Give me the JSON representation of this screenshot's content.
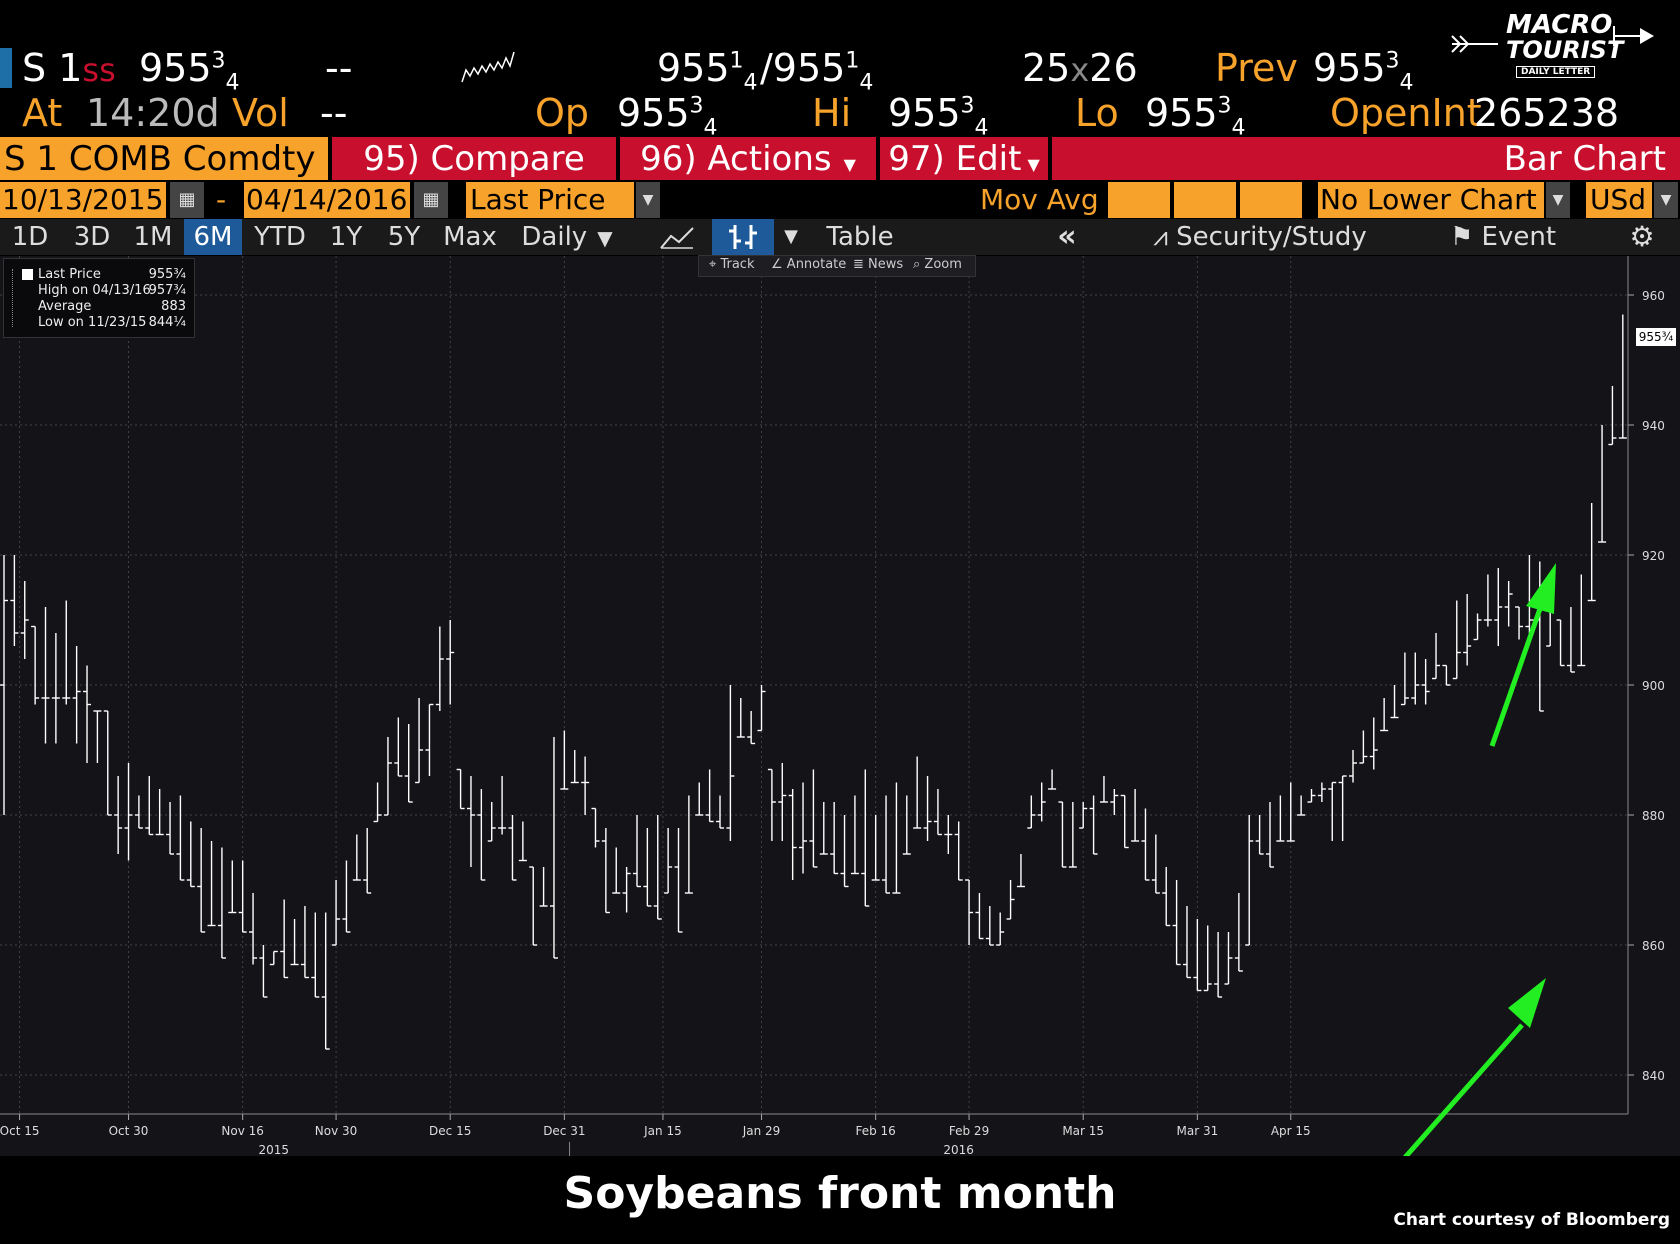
{
  "header": {
    "ticker": "S 1",
    "ticker_suffix": "ss",
    "last_main": "955",
    "last_sup": "3",
    "last_sub": "4",
    "change": "--",
    "bid_main": "955",
    "bid_sup": "1",
    "bid_sub": "4",
    "ask_main": "/955",
    "ask_sup": "1",
    "ask_sub": "4",
    "size_a": "25",
    "size_x": "x",
    "size_b": "26",
    "prev_label": "Prev",
    "prev_main": "955",
    "prev_sup": "3",
    "prev_sub": "4",
    "at_label": "At",
    "time": "14:20d",
    "vol_label": "Vol",
    "vol_value": "--",
    "op_label": "Op",
    "op_main": "955",
    "op_sup": "3",
    "op_sub": "4",
    "hi_label": "Hi",
    "hi_main": "955",
    "hi_sup": "3",
    "hi_sub": "4",
    "lo_label": "Lo",
    "lo_main": "955",
    "lo_sup": "3",
    "lo_sub": "4",
    "openint_label": "OpenInt",
    "openint_value": "265238"
  },
  "logo": {
    "line1": "MACRO",
    "line2": "TOURIST",
    "line3": "DAILY LETTER"
  },
  "menu": {
    "security": "S 1 COMB Comdty",
    "compare": "95) Compare",
    "actions": "96) Actions",
    "edit": "97) Edit",
    "title": "Bar Chart"
  },
  "controls": {
    "start_date": "10/13/2015",
    "dash": "-",
    "end_date": "04/14/2016",
    "field": "Last Price",
    "mov_avg": "Mov Avg",
    "lower_chart": "No Lower Chart",
    "currency": "USd"
  },
  "periods": [
    "1D",
    "3D",
    "1M",
    "6M",
    "YTD",
    "1Y",
    "5Y",
    "Max"
  ],
  "active_period": "6M",
  "frequency": "Daily",
  "table_label": "Table",
  "security_study": "Security/Study",
  "event_label": "Event",
  "chart_tools": {
    "track": "Track",
    "annotate": "Annotate",
    "news": "News",
    "zoom": "Zoom"
  },
  "legend": {
    "last_price_label": "Last Price",
    "last_price_value": "955¾",
    "high_label": "High on 04/13/16",
    "high_value": "957¾",
    "avg_label": "Average",
    "avg_value": "883",
    "low_label": "Low on 11/23/15",
    "low_value": "844¼"
  },
  "price_tag": "955¾",
  "caption": "Soybeans front month",
  "credit": "Chart courtesy of Bloomberg",
  "colors": {
    "orange": "#f7a22b",
    "red": "#c8102e",
    "arrow": "#22ee22",
    "background": "#131318",
    "bar": "#ffffff"
  },
  "chart_data": {
    "type": "bar",
    "subtype": "ohlc",
    "ylim": [
      834,
      966
    ],
    "y_ticks": [
      840,
      860,
      880,
      900,
      920,
      940,
      960
    ],
    "x_tick_labels": [
      "Oct 15",
      "Oct 30",
      "Nov 16",
      "Nov 30",
      "Dec 15",
      "Dec 31",
      "Jan 15",
      "Jan 29",
      "Feb 16",
      "Feb 29",
      "Mar 15",
      "Mar 31",
      "Apr 15"
    ],
    "x_tick_positions": [
      1.5,
      12,
      23,
      32,
      43,
      54,
      63.5,
      73,
      84,
      93,
      104,
      115,
      124
    ],
    "year_labels": [
      {
        "label": "2015",
        "x": 26
      },
      {
        "label": "2016",
        "x": 92
      }
    ],
    "year_separator_x": 54.5,
    "bars": [
      [
        0,
        920,
        880,
        913
      ],
      [
        1,
        920,
        906,
        908
      ],
      [
        2,
        916,
        904,
        910
      ],
      [
        3,
        909,
        897,
        898
      ],
      [
        4,
        912,
        891,
        898
      ],
      [
        5,
        908,
        891,
        898
      ],
      [
        6,
        913,
        897,
        898
      ],
      [
        7,
        906,
        891,
        899
      ],
      [
        8,
        903,
        888,
        897
      ],
      [
        9,
        892,
        888,
        896
      ],
      [
        10,
        896,
        885,
        880
      ],
      [
        11,
        886,
        874,
        878
      ],
      [
        12,
        888,
        873,
        880
      ],
      [
        13,
        883,
        878,
        878
      ],
      [
        14,
        886,
        877,
        877
      ],
      [
        15,
        884,
        881,
        877
      ],
      [
        16,
        882,
        881,
        874
      ],
      [
        17,
        883,
        874,
        870
      ],
      [
        18,
        879,
        871,
        869
      ],
      [
        19,
        878,
        870,
        862
      ],
      [
        20,
        876,
        872,
        863
      ],
      [
        21,
        875,
        863,
        858
      ],
      [
        22,
        873,
        868,
        865
      ],
      [
        23,
        873,
        868,
        862
      ],
      [
        24,
        868,
        857,
        858
      ],
      [
        25,
        860,
        857,
        852
      ],
      [
        26,
        858,
        857,
        859
      ],
      [
        27,
        867,
        861,
        855
      ],
      [
        28,
        864,
        862,
        857
      ],
      [
        29,
        866,
        858,
        855
      ],
      [
        30,
        865,
        860,
        852
      ],
      [
        31,
        865,
        859,
        844
      ],
      [
        32,
        870,
        860,
        864
      ],
      [
        33,
        873,
        862,
        862
      ],
      [
        34,
        877,
        876,
        870
      ],
      [
        35,
        878,
        872,
        868
      ],
      [
        36,
        885,
        879,
        880
      ],
      [
        37,
        892,
        880,
        888
      ],
      [
        38,
        895,
        889,
        886
      ],
      [
        39,
        894,
        890,
        882
      ],
      [
        40,
        898,
        885,
        890
      ],
      [
        41,
        890,
        886,
        897
      ],
      [
        42,
        909,
        896,
        904
      ],
      [
        43,
        910,
        897,
        905
      ],
      [
        44,
        887,
        882,
        881
      ],
      [
        45,
        886,
        872,
        880
      ],
      [
        46,
        884,
        879,
        870
      ],
      [
        47,
        882,
        876,
        878
      ],
      [
        48,
        886,
        877,
        878
      ],
      [
        49,
        880,
        871,
        870
      ],
      [
        50,
        879,
        876,
        873
      ],
      [
        51,
        872,
        867,
        860
      ],
      [
        52,
        872,
        866,
        866
      ],
      [
        53,
        892,
        870,
        858
      ],
      [
        54,
        893,
        889,
        884
      ],
      [
        55,
        890,
        887,
        885
      ],
      [
        56,
        889,
        880,
        885
      ],
      [
        57,
        881,
        875,
        876
      ],
      [
        58,
        878,
        870,
        865
      ],
      [
        59,
        875,
        869,
        868
      ],
      [
        60,
        872,
        865,
        871
      ],
      [
        61,
        880,
        875,
        869
      ],
      [
        62,
        878,
        868,
        866
      ],
      [
        63,
        880,
        870,
        864
      ],
      [
        64,
        878,
        868,
        872
      ],
      [
        65,
        878,
        874,
        862
      ],
      [
        66,
        883,
        876,
        868
      ],
      [
        67,
        885,
        882,
        880
      ],
      [
        68,
        887,
        883,
        879
      ],
      [
        69,
        883,
        879,
        878
      ],
      [
        70,
        900,
        876,
        886
      ],
      [
        71,
        898,
        896,
        892
      ],
      [
        72,
        896,
        893,
        891
      ],
      [
        73,
        900,
        893,
        899
      ],
      [
        74,
        887,
        876,
        882
      ],
      [
        75,
        888,
        876,
        883
      ],
      [
        76,
        884,
        870,
        875
      ],
      [
        77,
        885,
        871,
        876
      ],
      [
        78,
        887,
        873,
        872
      ],
      [
        79,
        882,
        875,
        874
      ],
      [
        80,
        882,
        877,
        871
      ],
      [
        81,
        880,
        877,
        869
      ],
      [
        82,
        883,
        878,
        871
      ],
      [
        83,
        887,
        876,
        866
      ],
      [
        84,
        880,
        878,
        870
      ],
      [
        85,
        883,
        876,
        868
      ],
      [
        86,
        885,
        876,
        868
      ],
      [
        87,
        883,
        878,
        874
      ],
      [
        88,
        889,
        883,
        878
      ],
      [
        89,
        886,
        876,
        879
      ],
      [
        90,
        884,
        881,
        877
      ],
      [
        91,
        880,
        874,
        877
      ],
      [
        92,
        879,
        876,
        870
      ],
      [
        93,
        870,
        860,
        865
      ],
      [
        94,
        868,
        862,
        861
      ],
      [
        95,
        866,
        860,
        860
      ],
      [
        96,
        865,
        860,
        862
      ],
      [
        97,
        870,
        864,
        867
      ],
      [
        98,
        874,
        869,
        869
      ],
      [
        99,
        883,
        878,
        880
      ],
      [
        100,
        885,
        879,
        882
      ],
      [
        101,
        887,
        885,
        884
      ],
      [
        102,
        880,
        882,
        872
      ],
      [
        103,
        882,
        878,
        872
      ],
      [
        104,
        882,
        878,
        881
      ],
      [
        105,
        883,
        880,
        874
      ],
      [
        106,
        886,
        883,
        882
      ],
      [
        107,
        884,
        880,
        883
      ],
      [
        108,
        883,
        880,
        875
      ],
      [
        109,
        884,
        880,
        876
      ],
      [
        110,
        881,
        877,
        870
      ],
      [
        111,
        877,
        868,
        868
      ],
      [
        112,
        872,
        865,
        863
      ],
      [
        113,
        870,
        864,
        857
      ],
      [
        114,
        866,
        858,
        855
      ],
      [
        115,
        864,
        856,
        853
      ],
      [
        116,
        863,
        853,
        854
      ],
      [
        117,
        862,
        860,
        852
      ],
      [
        118,
        862,
        854,
        858
      ],
      [
        119,
        868,
        861,
        856
      ]
    ],
    "bars_late": [
      [
        120,
        880,
        860,
        876
      ],
      [
        121,
        880,
        877,
        874
      ],
      [
        122,
        882,
        878,
        872
      ],
      [
        123,
        883,
        879,
        876
      ],
      [
        124,
        885,
        882,
        876
      ],
      [
        125,
        883,
        880,
        880
      ],
      [
        126,
        884,
        882,
        883
      ],
      [
        127,
        885,
        882,
        884
      ],
      [
        128,
        880,
        876,
        885
      ],
      [
        129,
        880,
        876,
        886
      ],
      [
        130,
        890,
        885,
        888
      ],
      [
        131,
        893,
        888,
        889
      ],
      [
        132,
        895,
        887,
        890
      ],
      [
        133,
        898,
        893,
        893
      ],
      [
        134,
        900,
        895,
        895
      ],
      [
        135,
        905,
        897,
        898
      ],
      [
        136,
        905,
        897,
        900
      ],
      [
        137,
        904,
        897,
        899
      ],
      [
        138,
        908,
        901,
        903
      ],
      [
        139,
        903,
        901,
        900
      ],
      [
        140,
        913,
        901,
        905
      ],
      [
        141,
        914,
        903,
        906
      ],
      [
        142,
        911,
        907,
        910
      ],
      [
        143,
        917,
        909,
        910
      ],
      [
        144,
        918,
        906,
        912
      ],
      [
        145,
        916,
        909,
        914
      ],
      [
        146,
        912,
        907,
        909
      ],
      [
        147,
        920,
        908,
        910
      ],
      [
        148,
        919,
        909,
        896
      ],
      [
        149,
        914,
        906,
        913
      ],
      [
        150,
        910,
        905,
        903
      ],
      [
        151,
        912,
        909,
        902
      ],
      [
        152,
        917,
        913,
        903
      ],
      [
        153,
        928,
        917,
        913
      ],
      [
        154,
        940,
        929,
        922
      ],
      [
        155,
        946,
        937,
        938
      ],
      [
        156,
        957,
        946,
        938
      ]
    ]
  }
}
